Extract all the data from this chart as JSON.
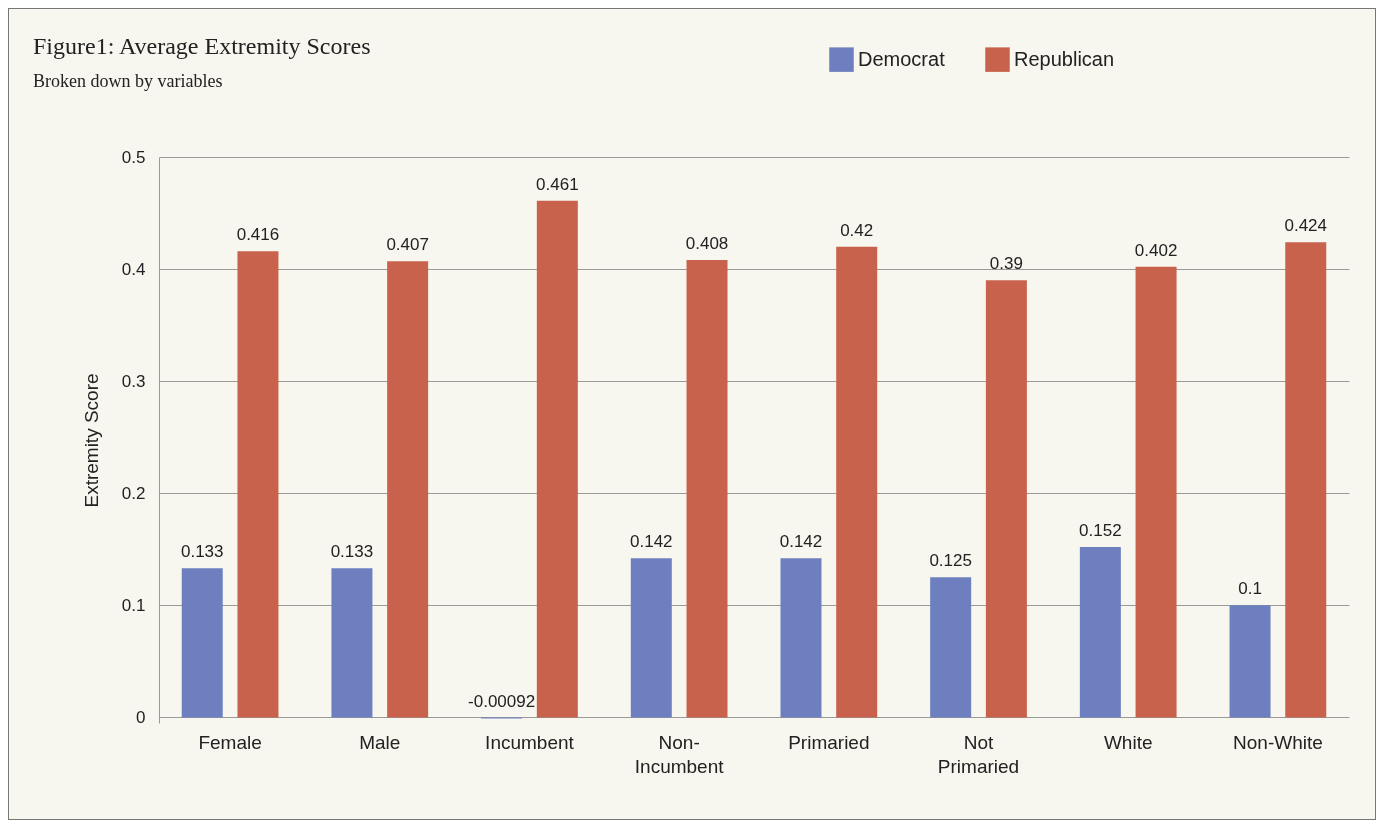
{
  "chart_data": {
    "type": "bar",
    "title": "Figure1: Average Extremity Scores",
    "subtitle": "Broken down by variables",
    "ylabel": "Extremity Score",
    "categories": [
      "Female",
      "Male",
      "Incumbent",
      "Non-Incumbent",
      "Primaried",
      "Not Primaried",
      "White",
      "Non-White"
    ],
    "series": [
      {
        "name": "Democrat",
        "color": "#6d7fbf",
        "values": [
          0.133,
          0.133,
          -0.00092,
          0.142,
          0.142,
          0.125,
          0.152,
          0.1
        ]
      },
      {
        "name": "Republican",
        "color": "#c8624d",
        "values": [
          0.416,
          0.407,
          0.461,
          0.408,
          0.42,
          0.39,
          0.402,
          0.424
        ]
      }
    ],
    "ylim": [
      -0.005,
      0.5
    ],
    "yticks": [
      0,
      0.1,
      0.2,
      0.3,
      0.4,
      0.5
    ],
    "grid": "y",
    "legend": "top right",
    "data_labels": true
  }
}
